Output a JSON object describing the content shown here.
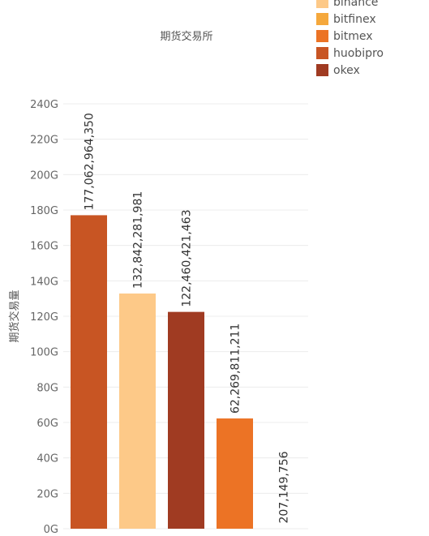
{
  "chart_data": {
    "type": "bar",
    "title": "期货交易所",
    "xlabel": "",
    "ylabel": "期货交易量",
    "ylim": [
      0,
      240000000000
    ],
    "y_ticks": [
      0,
      20000000000,
      40000000000,
      60000000000,
      80000000000,
      100000000000,
      120000000000,
      140000000000,
      160000000000,
      180000000000,
      200000000000,
      220000000000,
      240000000000
    ],
    "y_tick_labels": [
      "0G",
      "20G",
      "40G",
      "60G",
      "80G",
      "100G",
      "120G",
      "140G",
      "160G",
      "180G",
      "200G",
      "220G",
      "240G"
    ],
    "grid": true,
    "legend_position": "top-right",
    "categories": [
      "huobipro",
      "binance",
      "okex",
      "bitmex",
      "bitfinex"
    ],
    "values": [
      177062964350,
      132842281981,
      122460421463,
      62269811211,
      207149756
    ],
    "data_labels": [
      "177,062,964,350",
      "132,842,281,981",
      "122,460,421,463",
      "62,269,811,211",
      "207,149,756"
    ],
    "legend": [
      {
        "name": "binance",
        "color": "#fdc988"
      },
      {
        "name": "bitfinex",
        "color": "#f5a83c"
      },
      {
        "name": "bitmex",
        "color": "#ec7325"
      },
      {
        "name": "huobipro",
        "color": "#c85523"
      },
      {
        "name": "okex",
        "color": "#a03b22"
      }
    ]
  }
}
